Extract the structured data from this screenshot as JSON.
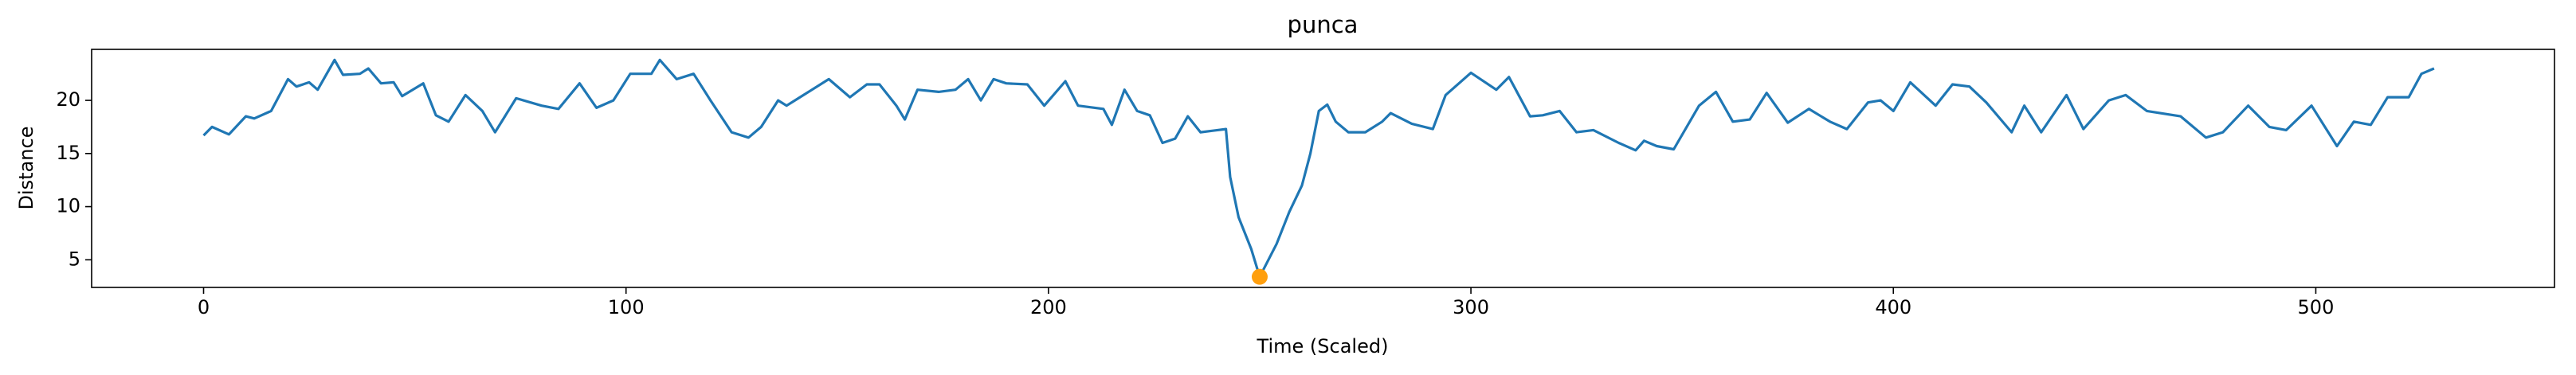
{
  "chart_data": {
    "type": "line",
    "title": "punca",
    "xlabel": "Time (Scaled)",
    "ylabel": "Distance",
    "x": [
      0,
      2,
      6,
      10,
      12,
      16,
      20,
      22,
      25,
      27,
      31,
      33,
      37,
      39,
      42,
      45,
      47,
      52,
      55,
      58,
      62,
      66,
      69,
      74,
      80,
      84,
      89,
      93,
      97,
      101,
      106,
      108,
      112,
      116,
      120,
      125,
      129,
      132,
      136,
      138,
      142,
      148,
      153,
      157,
      160,
      164,
      166,
      169,
      174,
      178,
      181,
      184,
      187,
      190,
      195,
      199,
      204,
      207,
      213,
      215,
      218,
      221,
      224,
      227,
      230,
      233,
      236,
      242,
      243,
      245,
      248,
      250,
      254,
      257,
      260,
      262,
      264,
      266,
      268,
      271,
      275,
      279,
      281,
      286,
      291,
      294,
      300,
      306,
      309,
      314,
      317,
      321,
      325,
      329,
      335,
      339,
      341,
      344,
      348,
      354,
      358,
      362,
      366,
      370,
      375,
      380,
      385,
      389,
      394,
      397,
      400,
      404,
      410,
      414,
      418,
      422,
      428,
      431,
      435,
      441,
      445,
      451,
      455,
      460,
      468,
      474,
      478,
      484,
      489,
      493,
      499,
      505,
      509,
      513,
      517,
      522,
      525,
      528
    ],
    "series": [
      {
        "color": "#1f77b4",
        "values": [
          16.7,
          17.5,
          16.8,
          18.5,
          18.3,
          19,
          22,
          21.3,
          21.7,
          21,
          23.8,
          22.4,
          22.5,
          23,
          21.6,
          21.7,
          20.4,
          21.6,
          18.6,
          18,
          20.5,
          19,
          17,
          20.2,
          19.5,
          19.2,
          21.6,
          19.3,
          20,
          22.5,
          22.5,
          23.8,
          22,
          22.5,
          20,
          17,
          16.5,
          17.5,
          20,
          19.5,
          20.5,
          22,
          20.3,
          21.5,
          21.5,
          19.5,
          18.2,
          21,
          20.8,
          21,
          22,
          20,
          22,
          21.6,
          21.5,
          19.5,
          21.8,
          19.5,
          19.2,
          17.7,
          21,
          19,
          18.6,
          16,
          16.4,
          18.5,
          17,
          17.3,
          12.8,
          9,
          6,
          3.4,
          6.5,
          9.5,
          12,
          15,
          19,
          19.6,
          18,
          17,
          17,
          18,
          18.8,
          17.8,
          17.3,
          20.5,
          22.6,
          21,
          22.2,
          18.5,
          18.6,
          19,
          17,
          17.2,
          16,
          15.3,
          16.2,
          15.7,
          15.4,
          19.5,
          20.8,
          18,
          18.2,
          20.7,
          17.9,
          19.2,
          18,
          17.3,
          19.8,
          20,
          19,
          21.7,
          19.5,
          21.5,
          21.3,
          19.8,
          17,
          19.5,
          17,
          20.5,
          17.3,
          20,
          20.5,
          19,
          18.5,
          16.5,
          17,
          19.5,
          17.5,
          17.2,
          19.5,
          15.7,
          18,
          17.7,
          20.3,
          20.3,
          22.5,
          23
        ]
      }
    ],
    "points": {
      "x": [
        250
      ],
      "y": [
        3.4
      ],
      "color": "#ff9f0e"
    },
    "xlim": [
      -26.5,
      556.5
    ],
    "ylim": [
      2.4,
      24.8
    ],
    "xticks": [
      0,
      100,
      200,
      300,
      400,
      500
    ],
    "yticks": [
      5,
      10,
      15,
      20
    ]
  }
}
